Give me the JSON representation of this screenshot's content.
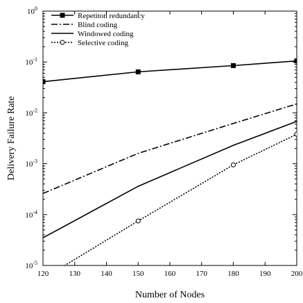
{
  "chart_data": {
    "type": "line",
    "xlabel": "Number of Nodes",
    "ylabel": "Delivery Failure Rate",
    "xlim": [
      120,
      200
    ],
    "ylim": [
      1e-05,
      1
    ],
    "yscale": "log",
    "x_ticks": [
      "120",
      "130",
      "140",
      "150",
      "160",
      "170",
      "180",
      "190",
      "200"
    ],
    "y_ticks": [
      {
        "base": "10",
        "exp": "-5"
      },
      {
        "base": "10",
        "exp": "-4"
      },
      {
        "base": "10",
        "exp": "-3"
      },
      {
        "base": "10",
        "exp": "-2"
      },
      {
        "base": "10",
        "exp": "-1"
      },
      {
        "base": "10",
        "exp": "0"
      }
    ],
    "legend_position": "top-left",
    "grid": false,
    "series": [
      {
        "name": "Repetiton redundancy",
        "style": "solid",
        "marker": "square",
        "x": [
          120,
          150,
          180,
          200
        ],
        "y": [
          0.041,
          0.064,
          0.085,
          0.105
        ]
      },
      {
        "name": "Blind coding",
        "style": "dashdot",
        "marker": "none",
        "x": [
          120,
          150,
          180,
          200
        ],
        "y": [
          0.00026,
          0.0016,
          0.0062,
          0.015
        ]
      },
      {
        "name": "Windowed coding",
        "style": "solid",
        "marker": "none",
        "x": [
          120,
          150,
          180,
          200
        ],
        "y": [
          3.5e-05,
          0.00036,
          0.0023,
          0.0068
        ]
      },
      {
        "name": "Selective coding",
        "style": "dotted",
        "marker": "circle",
        "x": [
          120,
          150,
          180,
          200
        ],
        "y": [
          5.5e-06,
          7.5e-05,
          0.00095,
          0.0038
        ]
      }
    ]
  }
}
